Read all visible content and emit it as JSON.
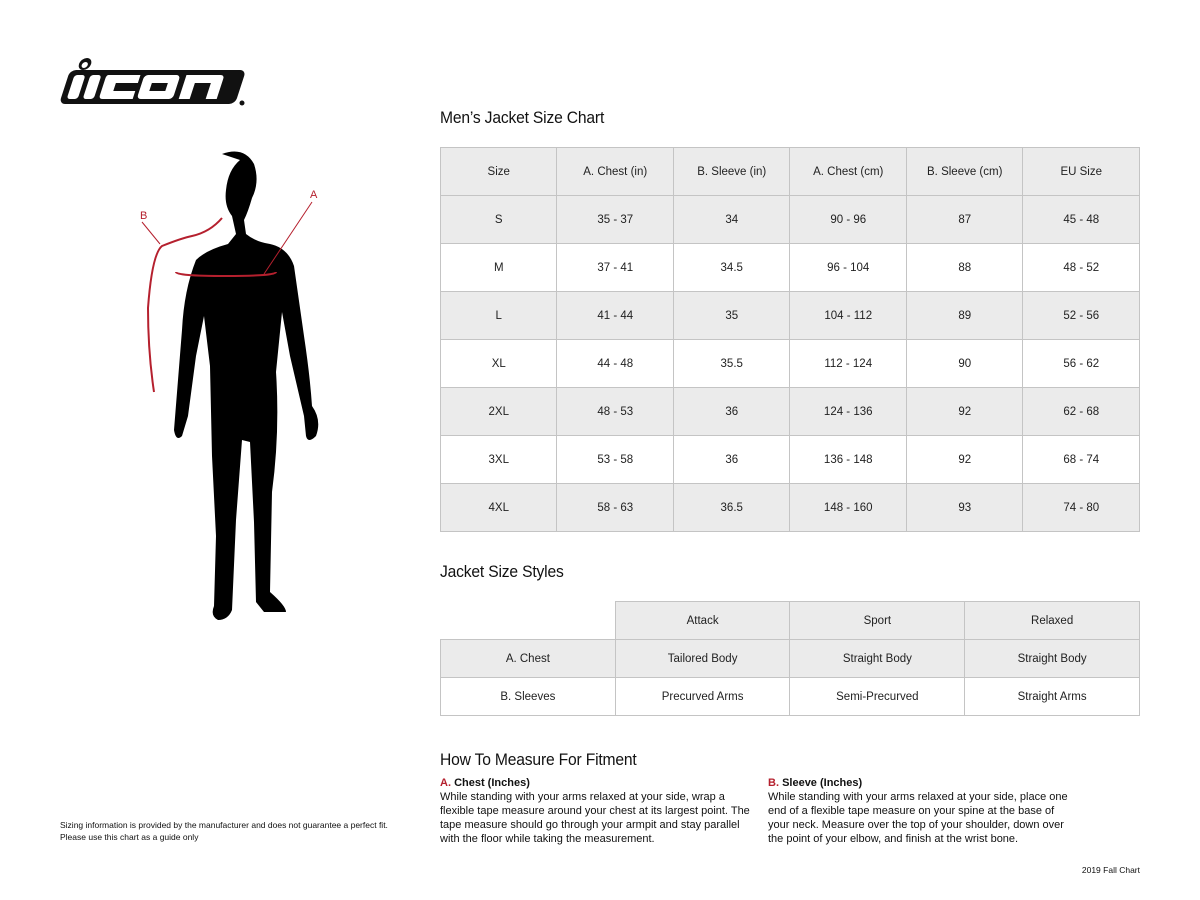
{
  "logo": {
    "text": "ICON"
  },
  "figure": {
    "label_a": "A",
    "label_b": "B",
    "accent_color": "#b5202e"
  },
  "size_chart": {
    "title": "Men’s Jacket Size Chart",
    "headers": [
      "Size",
      "A. Chest (in)",
      "B. Sleeve (in)",
      "A. Chest (cm)",
      "B. Sleeve (cm)",
      "EU Size"
    ],
    "rows": [
      [
        "S",
        "35 - 37",
        "34",
        "90 - 96",
        "87",
        "45 - 48"
      ],
      [
        "M",
        "37 - 41",
        "34.5",
        "96 - 104",
        "88",
        "48 - 52"
      ],
      [
        "L",
        "41 - 44",
        "35",
        "104 - 112",
        "89",
        "52 - 56"
      ],
      [
        "XL",
        "44 - 48",
        "35.5",
        "112 - 124",
        "90",
        "56 - 62"
      ],
      [
        "2XL",
        "48 - 53",
        "36",
        "124 - 136",
        "92",
        "62 - 68"
      ],
      [
        "3XL",
        "53 - 58",
        "36",
        "136 - 148",
        "92",
        "68 - 74"
      ],
      [
        "4XL",
        "58 - 63",
        "36.5",
        "148 - 160",
        "93",
        "74 - 80"
      ]
    ]
  },
  "styles": {
    "title": "Jacket Size Styles",
    "headers": [
      "",
      "Attack",
      "Sport",
      "Relaxed"
    ],
    "rows": [
      [
        "A. Chest",
        "Tailored Body",
        "Straight Body",
        "Straight Body"
      ],
      [
        "B. Sleeves",
        "Precurved Arms",
        "Semi-Precurved",
        "Straight Arms"
      ]
    ]
  },
  "measure": {
    "title": "How To Measure For Fitment",
    "chest": {
      "letter": "A.",
      "label": "Chest (Inches)",
      "text": "While standing with your arms relaxed at your side, wrap a flexible tape measure around your chest at its largest point. The tape measure should go through your armpit and stay parallel with the floor while taking the measurement."
    },
    "sleeve": {
      "letter": "B.",
      "label": "Sleeve (Inches)",
      "text": "While standing with your arms relaxed at your side, place one end of a flexible tape measure on your spine at the base of your neck. Measure over the top of your shoulder, down over the point of your elbow, and finish at the wrist bone."
    }
  },
  "disclaimer": {
    "line1": "Sizing information is provided by the manufacturer and does not guarantee a perfect fit.",
    "line2": "Please use this chart as a guide only"
  },
  "footer": {
    "chart_label": "2019 Fall Chart"
  }
}
